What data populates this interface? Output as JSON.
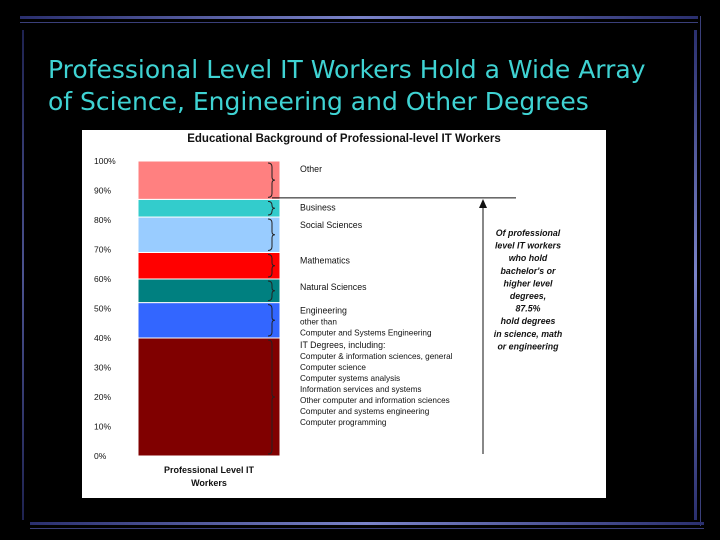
{
  "slide": {
    "title_line1": "Professional Level IT Workers Hold a Wide Array",
    "title_line2": "of Science, Engineering and Other Degrees",
    "background": "#000000",
    "title_color": "#3fd3d3"
  },
  "chart_data": {
    "type": "bar",
    "title": "Educational Background of Professional-level IT Workers",
    "categories": [
      "Professional Level IT Workers"
    ],
    "ylim": [
      0,
      100
    ],
    "yticks": [
      "0%",
      "10%",
      "20%",
      "30%",
      "40%",
      "50%",
      "60%",
      "70%",
      "80%",
      "90%",
      "100%"
    ],
    "grid": false,
    "stacked": true,
    "segments": [
      {
        "from": 0,
        "to": 40,
        "color": "#800000"
      },
      {
        "from": 40,
        "to": 52,
        "color": "#3366ff"
      },
      {
        "from": 52,
        "to": 60,
        "color": "#008080"
      },
      {
        "from": 60,
        "to": 69,
        "color": "#ff0000"
      },
      {
        "from": 69,
        "to": 81,
        "color": "#99ccff"
      },
      {
        "from": 81,
        "to": 87,
        "color": "#33cccc"
      },
      {
        "from": 87,
        "to": 100,
        "color": "#ff8080"
      }
    ],
    "category_labels": [
      {
        "lines": [
          "Other"
        ]
      },
      {
        "lines": [
          "Business"
        ]
      },
      {
        "lines": [
          "Social Sciences"
        ]
      },
      {
        "lines": [
          "Mathematics"
        ]
      },
      {
        "lines": [
          "Natural Sciences"
        ]
      },
      {
        "lines": [
          "Engineering",
          "other than",
          "Computer and Systems Engineering"
        ]
      },
      {
        "lines": [
          "IT Degrees, including:",
          "Computer & information sciences, general",
          "Computer science",
          "Computer systems analysis",
          "Information services and systems",
          "Other computer and information sciences",
          "Computer and systems engineering",
          "Computer programming"
        ]
      }
    ],
    "threshold_pct": 87.5,
    "annotation": [
      "Of professional",
      "level IT workers",
      "who hold",
      "bachelor's or",
      "higher level",
      "degrees,",
      "87.5%",
      "hold degrees",
      "in science, math",
      "or engineering"
    ]
  }
}
